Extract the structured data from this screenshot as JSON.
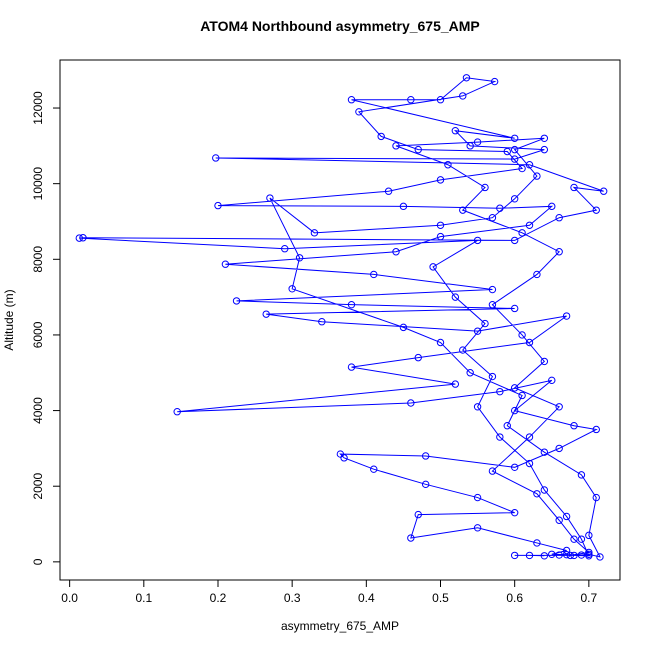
{
  "chart_data": {
    "type": "line",
    "marker": "circle",
    "color": "#0000ff",
    "title": "ATOM4 Northbound asymmetry_675_AMP",
    "x_label": "asymmetry_675_AMP",
    "y_label": "Altitude (m)",
    "xlim": [
      -0.013,
      0.742
    ],
    "ylim": [
      -480,
      13270
    ],
    "xticks": [
      {
        "value": 0,
        "label": "0.0"
      },
      0.1,
      0.2,
      0.3,
      0.4,
      0.5,
      0.6,
      0.7
    ],
    "yticks": [
      0,
      2000,
      4000,
      6000,
      8000,
      10000,
      12000
    ],
    "x": [
      0.66,
      0.68,
      0.7,
      0.69,
      0.67,
      0.64,
      0.62,
      0.58,
      0.55,
      0.57,
      0.53,
      0.56,
      0.52,
      0.49,
      0.55,
      0.29,
      0.013,
      0.018,
      0.6,
      0.66,
      0.71,
      0.68,
      0.72,
      0.62,
      0.197,
      0.6,
      0.64,
      0.54,
      0.52,
      0.6,
      0.38,
      0.46,
      0.5,
      0.535,
      0.573,
      0.53,
      0.39,
      0.42,
      0.47,
      0.59,
      0.61,
      0.5,
      0.43,
      0.2,
      0.45,
      0.58,
      0.65,
      0.62,
      0.5,
      0.44,
      0.21,
      0.41,
      0.57,
      0.225,
      0.38,
      0.6,
      0.265,
      0.34,
      0.55,
      0.67,
      0.62,
      0.47,
      0.38,
      0.52,
      0.145,
      0.46,
      0.58,
      0.65,
      0.6,
      0.68,
      0.71,
      0.66,
      0.6,
      0.48,
      0.365,
      0.37,
      0.41,
      0.48,
      0.55,
      0.6,
      0.47,
      0.46,
      0.55,
      0.63,
      0.67,
      0.65,
      0.67,
      0.69,
      0.7,
      0.715,
      0.7,
      0.71,
      0.69,
      0.64,
      0.59,
      0.61,
      0.54,
      0.5,
      0.45,
      0.3,
      0.31,
      0.27,
      0.33,
      0.5,
      0.57,
      0.6,
      0.63,
      0.6,
      0.64,
      0.55,
      0.44,
      0.51,
      0.56,
      0.53,
      0.61,
      0.66,
      0.63,
      0.57,
      0.61,
      0.64,
      0.6,
      0.66,
      0.62,
      0.57,
      0.63,
      0.66,
      0.68,
      0.7,
      0.675,
      0.6,
      0.62,
      0.64
    ],
    "series": [
      {
        "values": [
          180,
          170,
          160,
          600,
          1200,
          1900,
          2600,
          3300,
          4100,
          4900,
          5600,
          6300,
          7000,
          7800,
          8500,
          8280,
          8560,
          8570,
          8500,
          9100,
          9300,
          9900,
          9800,
          10500,
          10680,
          10650,
          10900,
          11000,
          11400,
          11200,
          12220,
          12220,
          12220,
          12800,
          12700,
          12320,
          11900,
          11250,
          10900,
          10850,
          10400,
          10100,
          9800,
          9420,
          9400,
          9350,
          9400,
          8900,
          8600,
          8200,
          7870,
          7600,
          7200,
          6900,
          6800,
          6700,
          6550,
          6350,
          6100,
          6500,
          5800,
          5400,
          5150,
          4700,
          3970,
          4200,
          4500,
          4800,
          4000,
          3600,
          3500,
          3000,
          2500,
          2800,
          2850,
          2750,
          2450,
          2050,
          1700,
          1300,
          1250,
          630,
          900,
          500,
          300,
          200,
          190,
          180,
          200,
          130,
          700,
          1700,
          2300,
          2900,
          3600,
          4400,
          5000,
          5800,
          6200,
          7220,
          8040,
          9620,
          8700,
          8900,
          9100,
          9600,
          10200,
          10900,
          11200,
          11100,
          11000,
          10500,
          9900,
          9300,
          8700,
          8200,
          7600,
          6800,
          6000,
          5300,
          4600,
          4100,
          3300,
          2400,
          1800,
          1100,
          600,
          250,
          170,
          170,
          170,
          160
        ]
      }
    ]
  }
}
